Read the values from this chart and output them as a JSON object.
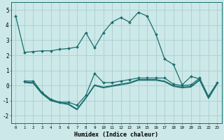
{
  "xlabel": "Humidex (Indice chaleur)",
  "background_color": "#cce8e8",
  "grid_color": "#aacece",
  "line_color": "#1a6e6e",
  "xlim": [
    -0.5,
    23.5
  ],
  "ylim": [
    -2.5,
    5.5
  ],
  "xticks": [
    0,
    1,
    2,
    3,
    4,
    5,
    6,
    7,
    8,
    9,
    10,
    11,
    12,
    13,
    14,
    15,
    16,
    17,
    18,
    19,
    20,
    21,
    22,
    23
  ],
  "yticks": [
    -2,
    -1,
    0,
    1,
    2,
    3,
    4,
    5
  ],
  "series": [
    {
      "x": [
        0,
        1,
        2,
        3,
        4,
        5,
        6,
        7,
        8,
        9,
        10,
        11,
        12,
        13,
        14,
        15,
        16,
        17,
        18,
        19,
        20,
        21
      ],
      "y": [
        4.6,
        2.2,
        2.25,
        2.3,
        2.3,
        2.4,
        2.45,
        2.55,
        3.5,
        2.5,
        3.5,
        4.2,
        4.5,
        4.2,
        4.85,
        4.6,
        3.4,
        1.75,
        1.4,
        0.05,
        0.6,
        0.45
      ],
      "marker": true
    },
    {
      "x": [
        1,
        2,
        3,
        4,
        5,
        6,
        7,
        8,
        9,
        10,
        11,
        12,
        13,
        14,
        15,
        16,
        17,
        18,
        19,
        20,
        21,
        22,
        23
      ],
      "y": [
        0.3,
        0.3,
        -0.45,
        -0.9,
        -1.1,
        -1.1,
        -1.3,
        -0.65,
        0.8,
        0.2,
        0.2,
        0.3,
        0.4,
        0.5,
        0.5,
        0.5,
        0.5,
        0.1,
        0.0,
        0.05,
        0.5,
        -0.7,
        0.2
      ],
      "marker": true
    },
    {
      "x": [
        1,
        2,
        3,
        4,
        5,
        6,
        7,
        8,
        9,
        10,
        11,
        12,
        13,
        14,
        15,
        16,
        17,
        18,
        19,
        20,
        21,
        22,
        23
      ],
      "y": [
        0.25,
        0.2,
        -0.5,
        -0.95,
        -1.1,
        -1.2,
        -1.55,
        -0.8,
        0.05,
        -0.1,
        0.0,
        0.1,
        0.2,
        0.4,
        0.4,
        0.4,
        0.3,
        0.0,
        -0.1,
        -0.05,
        0.4,
        -0.8,
        0.15
      ],
      "marker": false
    },
    {
      "x": [
        1,
        2,
        3,
        4,
        5,
        6,
        7,
        8,
        9,
        10,
        11,
        12,
        13,
        14,
        15,
        16,
        17,
        18,
        19,
        20,
        21,
        22,
        23
      ],
      "y": [
        0.2,
        0.15,
        -0.55,
        -1.0,
        -1.15,
        -1.25,
        -1.6,
        -0.85,
        0.0,
        -0.15,
        -0.05,
        0.05,
        0.15,
        0.35,
        0.35,
        0.35,
        0.25,
        -0.05,
        -0.15,
        -0.1,
        0.35,
        -0.85,
        0.1
      ],
      "marker": false
    }
  ]
}
